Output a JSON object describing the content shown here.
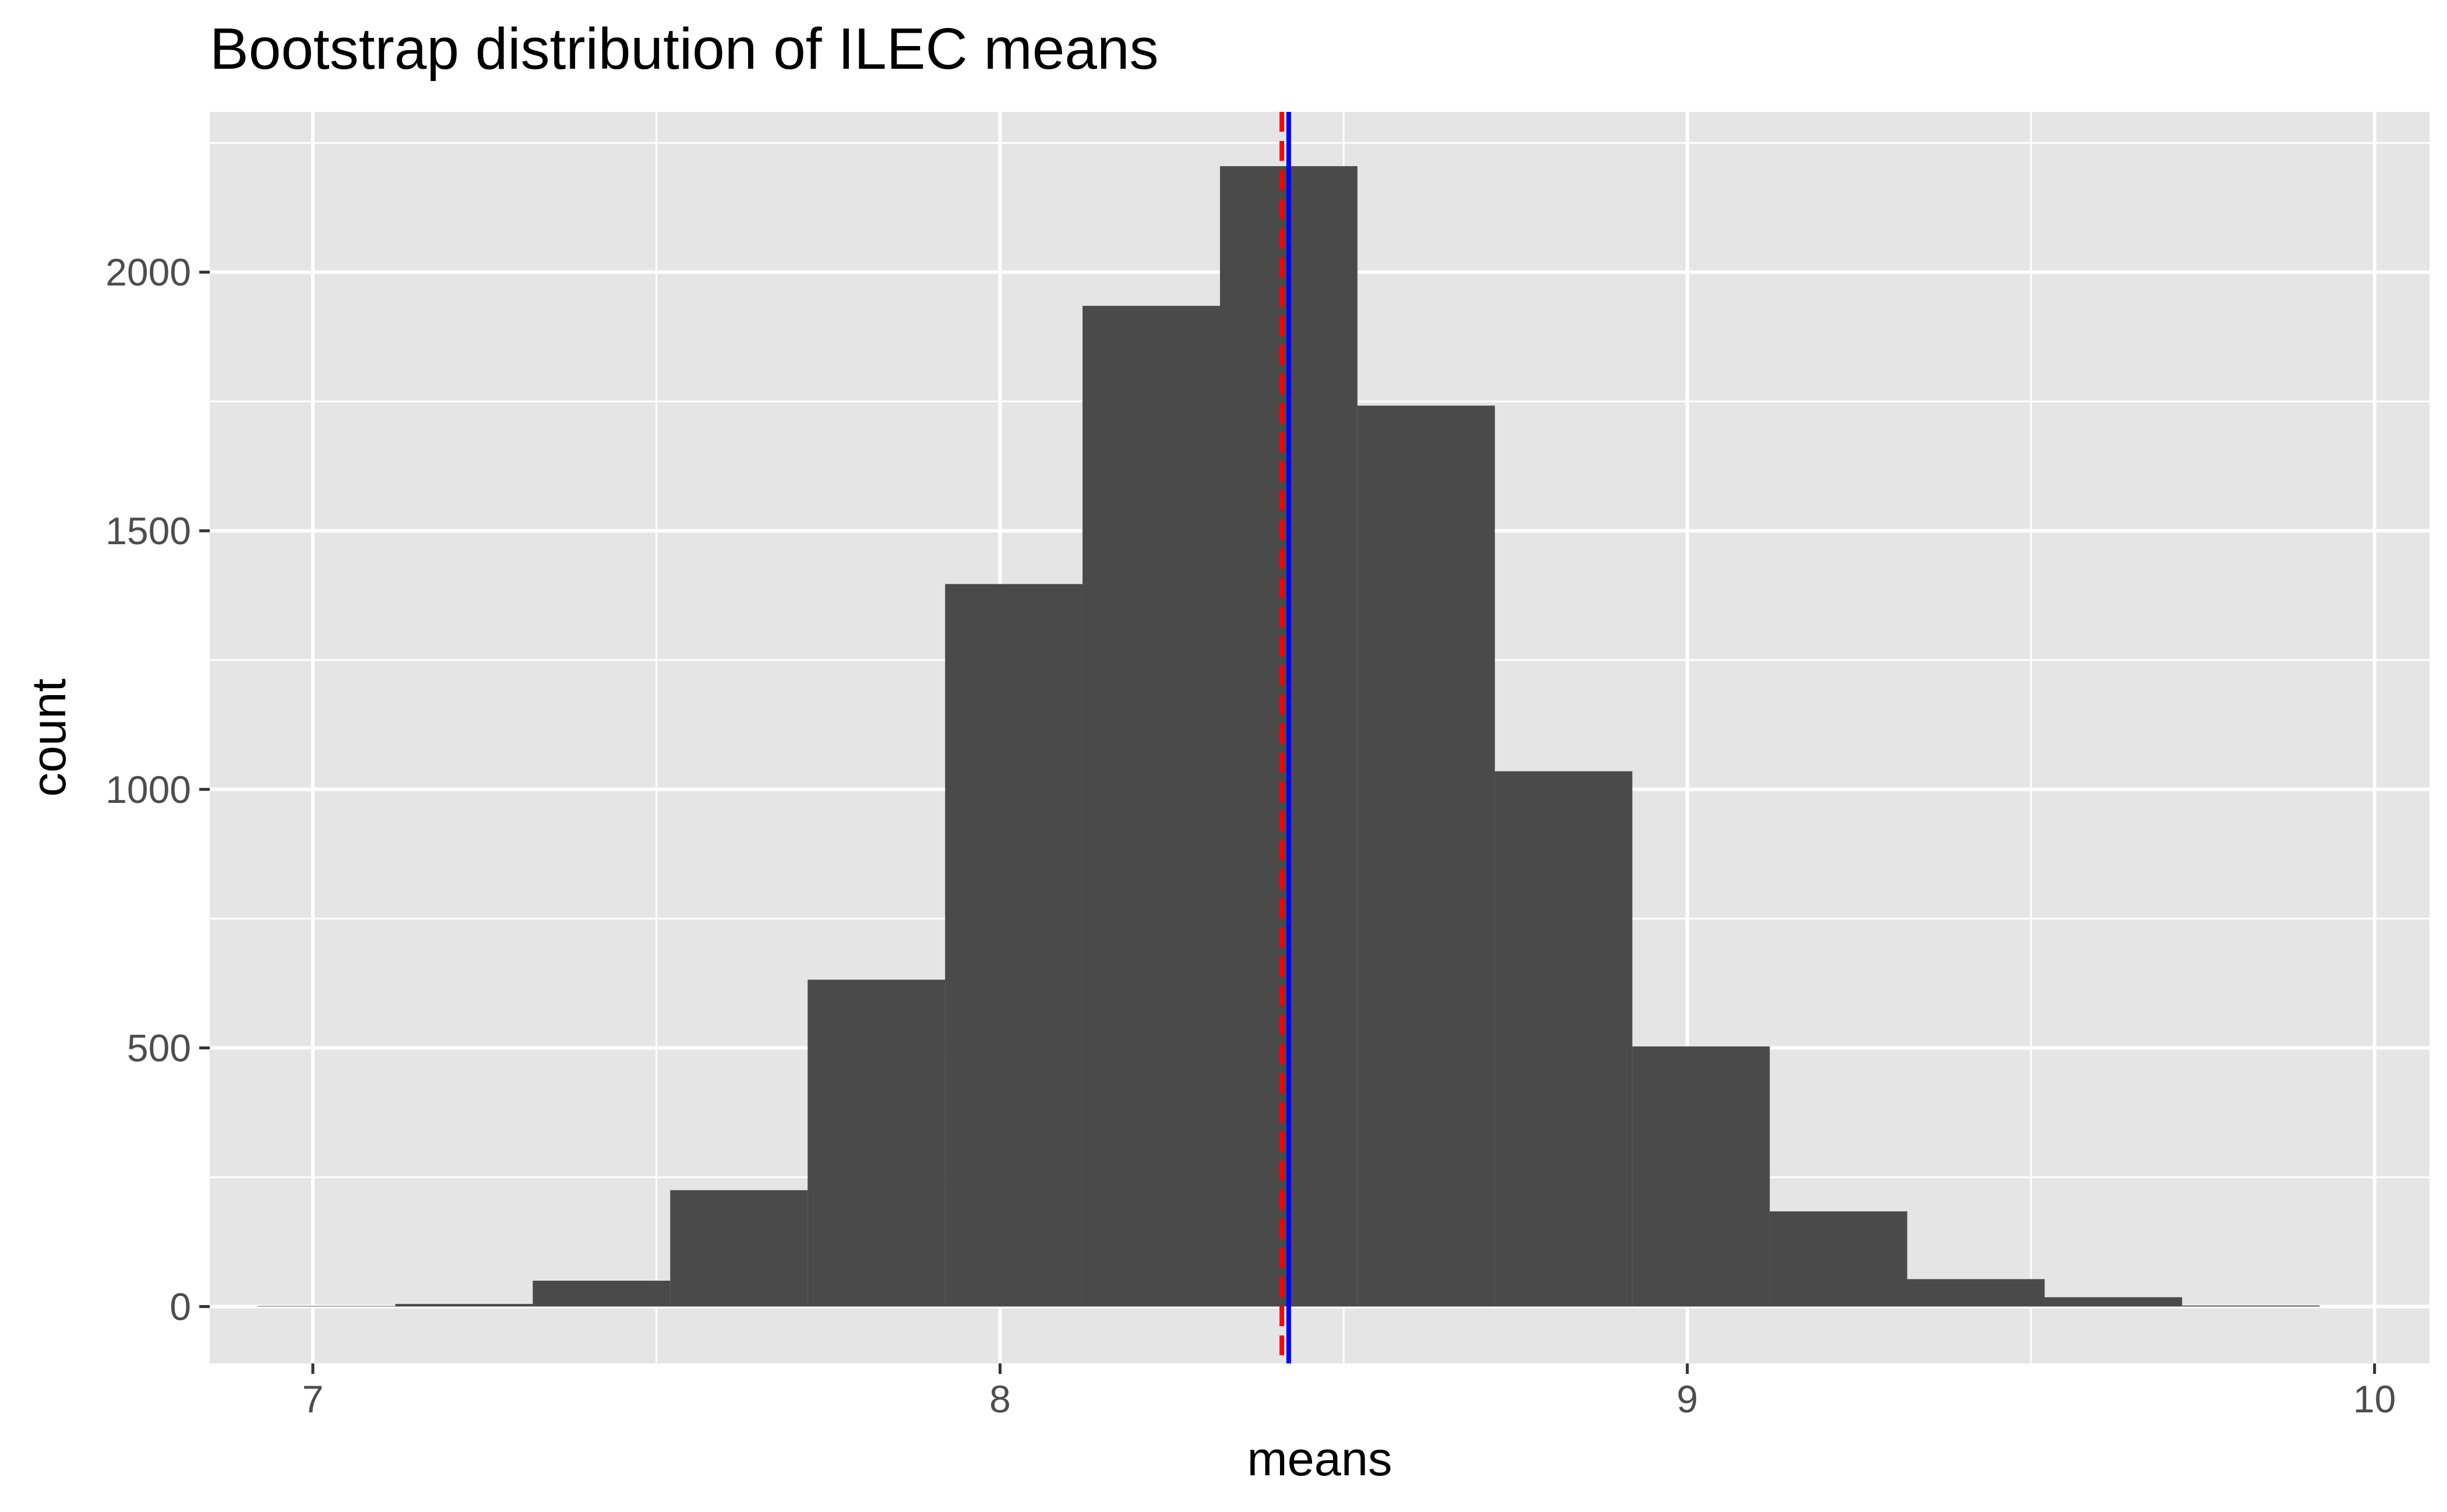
{
  "chart_data": {
    "type": "bar",
    "title": "Bootstrap distribution of ILEC means",
    "xlabel": "means",
    "ylabel": "count",
    "xlim": [
      6.85,
      10.08
    ],
    "ylim": [
      -110,
      2310
    ],
    "x_ticks": [
      7,
      8,
      9,
      10
    ],
    "y_ticks": [
      0,
      500,
      1000,
      1500,
      2000
    ],
    "grid": true,
    "bin_width": 0.2,
    "bins": [
      {
        "x_start": 6.92,
        "x_end": 7.12,
        "count": 1
      },
      {
        "x_start": 7.12,
        "x_end": 7.32,
        "count": 5
      },
      {
        "x_start": 7.32,
        "x_end": 7.52,
        "count": 50
      },
      {
        "x_start": 7.52,
        "x_end": 7.72,
        "count": 225
      },
      {
        "x_start": 7.72,
        "x_end": 7.92,
        "count": 632
      },
      {
        "x_start": 7.92,
        "x_end": 8.12,
        "count": 1397
      },
      {
        "x_start": 8.12,
        "x_end": 8.32,
        "count": 1935
      },
      {
        "x_start": 8.32,
        "x_end": 8.52,
        "count": 2205
      },
      {
        "x_start": 8.52,
        "x_end": 8.72,
        "count": 1742
      },
      {
        "x_start": 8.72,
        "x_end": 8.92,
        "count": 1035
      },
      {
        "x_start": 8.92,
        "x_end": 9.12,
        "count": 503
      },
      {
        "x_start": 9.12,
        "x_end": 9.32,
        "count": 184
      },
      {
        "x_start": 9.32,
        "x_end": 9.52,
        "count": 53
      },
      {
        "x_start": 9.52,
        "x_end": 9.72,
        "count": 18
      },
      {
        "x_start": 9.72,
        "x_end": 9.92,
        "count": 2
      }
    ],
    "reference_lines": [
      {
        "x": 8.42,
        "color": "#0000ff",
        "style": "solid"
      },
      {
        "x": 8.41,
        "color": "#ff0000",
        "style": "dashed"
      }
    ],
    "colors": {
      "bar": "#4a4a4a",
      "panel": "#e5e5e5",
      "grid": "#ffffff"
    }
  }
}
